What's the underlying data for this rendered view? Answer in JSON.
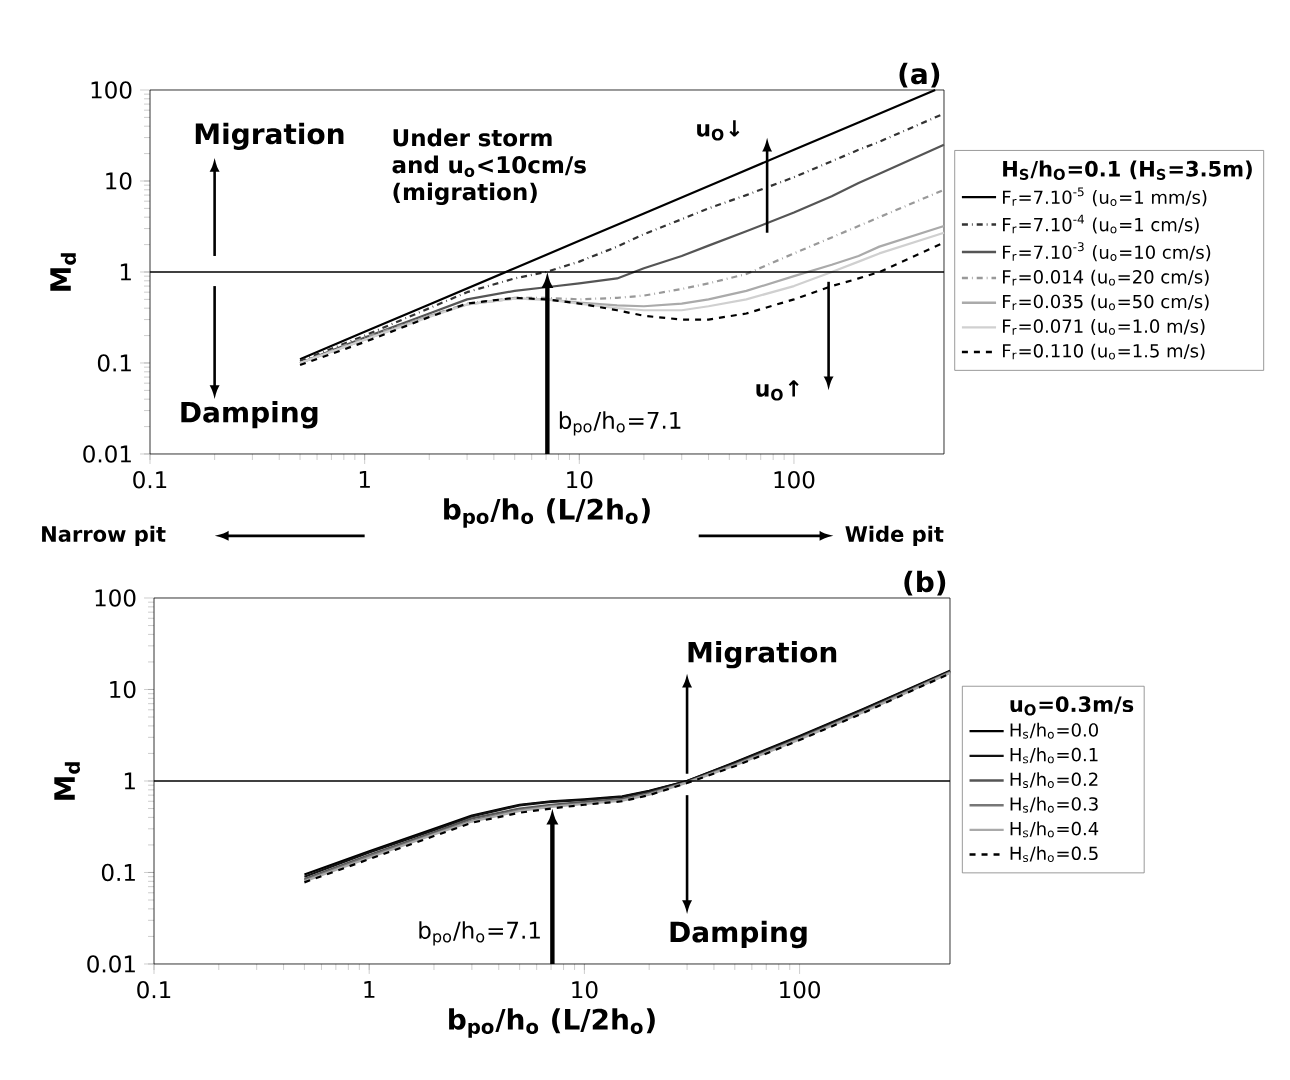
{
  "chart_data": [
    {
      "type": "line",
      "title": "(a)",
      "xlabel": "b$_{po}$/h$_{o}$  (L/2h$_{o}$)",
      "ylabel": "M$_{d}$",
      "legend_title": "H$_{S}$/h$_{O}$=0.1 (H$_{S}$=3.5m)",
      "x": [
        0.5,
        1,
        2,
        3,
        5,
        7,
        10,
        15,
        20,
        30,
        40,
        60,
        100,
        150,
        200,
        250,
        500
      ],
      "series": [
        {
          "name": "F$_{r}$=7.10$^{-5}$ (u$_{o}$=1 mm/s)",
          "color": "#000000",
          "line_style": "solid",
          "x": [
            0.5,
            1,
            2,
            5,
            10,
            20,
            50,
            100,
            200,
            455
          ],
          "values": [
            0.11,
            0.22,
            0.44,
            1.1,
            2.2,
            4.4,
            11,
            22,
            44,
            100
          ]
        },
        {
          "name": "F$_{r}$=7.10$^{-4}$ (u$_{o}$=1 cm/s)",
          "color": "#333333",
          "line_style": "dashdot",
          "values": [
            0.105,
            0.2,
            0.4,
            0.6,
            0.85,
            1.0,
            1.3,
            1.9,
            2.6,
            3.8,
            5,
            7,
            11,
            16.5,
            22,
            27,
            55
          ]
        },
        {
          "name": "F$_{r}$=7.10$^{-3}$ (u$_{o}$=10 cm/s)",
          "color": "#555555",
          "line_style": "solid",
          "values": [
            0.1,
            0.19,
            0.35,
            0.5,
            0.62,
            0.68,
            0.75,
            0.85,
            1.1,
            1.5,
            1.95,
            2.8,
            4.5,
            6.8,
            9.5,
            12,
            25
          ]
        },
        {
          "name": "F$_{r}$=0.014 (u$_{o}$=20 cm/s)",
          "color": "#999999",
          "line_style": "dashdot",
          "values": [
            0.1,
            0.19,
            0.33,
            0.45,
            0.52,
            0.52,
            0.5,
            0.52,
            0.55,
            0.65,
            0.75,
            0.95,
            1.6,
            2.4,
            3.2,
            4,
            8
          ]
        },
        {
          "name": "F$_{r}$=0.035 (u$_{o}$=50 cm/s)",
          "color": "#aaaaaa",
          "line_style": "solid",
          "values": [
            0.1,
            0.18,
            0.33,
            0.44,
            0.51,
            0.5,
            0.46,
            0.43,
            0.42,
            0.45,
            0.5,
            0.62,
            0.9,
            1.2,
            1.5,
            1.9,
            3.2
          ]
        },
        {
          "name": "F$_{r}$=0.071 (u$_{o}$=1.0 m/s)",
          "color": "#d0d0d0",
          "line_style": "solid",
          "values": [
            0.1,
            0.18,
            0.32,
            0.44,
            0.51,
            0.5,
            0.45,
            0.4,
            0.38,
            0.38,
            0.42,
            0.5,
            0.7,
            1.0,
            1.3,
            1.6,
            2.7
          ]
        },
        {
          "name": "F$_{r}$=0.110 (u$_{o}$=1.5 m/s)",
          "color": "#000000",
          "line_style": "dashed",
          "values": [
            0.095,
            0.17,
            0.32,
            0.45,
            0.52,
            0.5,
            0.45,
            0.38,
            0.33,
            0.3,
            0.3,
            0.35,
            0.5,
            0.7,
            0.85,
            1.0,
            2.1
          ]
        }
      ],
      "log": "xy",
      "xlim": [
        0.1,
        500
      ],
      "ylim": [
        0.01,
        100
      ],
      "xticks": [
        0.1,
        1,
        10,
        100
      ],
      "yticks": [
        0.01,
        0.1,
        1,
        10,
        100
      ],
      "ref_lines": [
        {
          "axis": "y",
          "value": 1,
          "color": "#000000"
        }
      ],
      "annotations": [
        "Migration",
        "Damping",
        "Under storm and u$_{o}$<10cm/s (migration)",
        "u$_{O}$↓",
        "u$_{O}$↑",
        {
          "text": "b$_{po}$/h$_{o}$=7.1",
          "x": 7.1,
          "y": 1
        },
        "Narrow pit",
        "Wide pit"
      ],
      "legend": "right"
    },
    {
      "type": "line",
      "title": "(b)",
      "xlabel": "b$_{po}$/h$_{o}$  (L/2h$_{o}$)",
      "ylabel": "M$_{d}$",
      "legend_title": "u$_{O}$=0.3m/s",
      "x": [
        0.5,
        1,
        2,
        3,
        5,
        7,
        10,
        15,
        20,
        30,
        50,
        100,
        200,
        500
      ],
      "series": [
        {
          "name": "H$_{s}$/h$_{o}$=0.0",
          "color": "#000000",
          "line_style": "solid",
          "values": [
            0.095,
            0.17,
            0.3,
            0.42,
            0.55,
            0.6,
            0.63,
            0.68,
            0.78,
            1.0,
            1.6,
            3.1,
            6.2,
            16
          ]
        },
        {
          "name": "H$_{s}$/h$_{o}$=0.1",
          "color": "#111111",
          "line_style": "solid",
          "values": [
            0.09,
            0.165,
            0.29,
            0.41,
            0.54,
            0.59,
            0.62,
            0.67,
            0.77,
            1.0,
            1.58,
            3.05,
            6.1,
            15.8
          ]
        },
        {
          "name": "H$_{s}$/h$_{o}$=0.2",
          "color": "#555555",
          "line_style": "solid",
          "values": [
            0.085,
            0.155,
            0.275,
            0.39,
            0.5,
            0.55,
            0.59,
            0.64,
            0.74,
            0.98,
            1.52,
            2.95,
            5.9,
            15.5
          ]
        },
        {
          "name": "H$_{s}$/h$_{o}$=0.3",
          "color": "#777777",
          "line_style": "solid",
          "values": [
            0.082,
            0.15,
            0.265,
            0.37,
            0.48,
            0.53,
            0.57,
            0.62,
            0.72,
            0.97,
            1.5,
            2.9,
            5.8,
            15.3
          ]
        },
        {
          "name": "H$_{s}$/h$_{o}$=0.4",
          "color": "#aaaaaa",
          "line_style": "solid",
          "values": [
            0.08,
            0.145,
            0.26,
            0.36,
            0.47,
            0.52,
            0.56,
            0.61,
            0.71,
            0.96,
            1.48,
            2.85,
            5.7,
            15.1
          ]
        },
        {
          "name": "H$_{s}$/h$_{o}$=0.5",
          "color": "#000000",
          "line_style": "dashed",
          "values": [
            0.078,
            0.14,
            0.25,
            0.35,
            0.45,
            0.5,
            0.55,
            0.6,
            0.7,
            0.95,
            1.45,
            2.8,
            5.6,
            15
          ]
        }
      ],
      "log": "xy",
      "xlim": [
        0.1,
        500
      ],
      "ylim": [
        0.01,
        100
      ],
      "xticks": [
        0.1,
        1,
        10,
        100
      ],
      "yticks": [
        0.01,
        0.1,
        1,
        10,
        100
      ],
      "ref_lines": [
        {
          "axis": "y",
          "value": 1,
          "color": "#000000"
        }
      ],
      "annotations": [
        "Migration",
        "Damping",
        {
          "text": "b$_{po}$/h$_{o}$=7.1",
          "x": 7.1,
          "y": 0.5
        }
      ],
      "legend": "right"
    }
  ]
}
